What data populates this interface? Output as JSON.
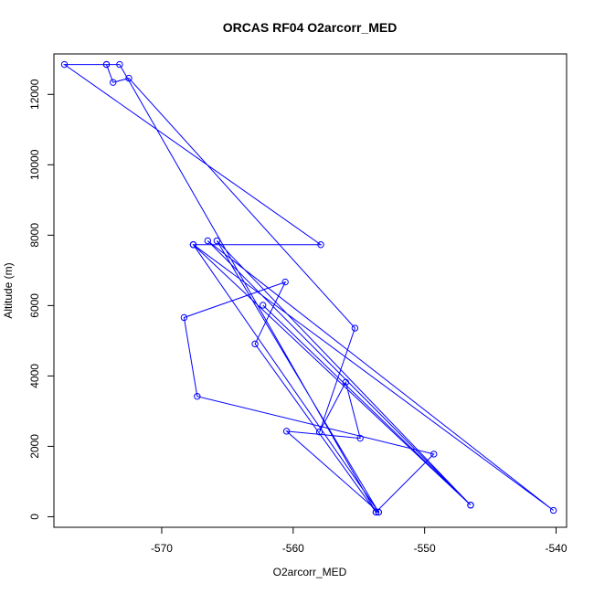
{
  "chart_data": {
    "type": "line",
    "title": "ORCAS RF04 O2arcorr_MED",
    "xlabel": "O2arcorr_MED",
    "ylabel": "Altitude (m)",
    "xlim": [
      -578.2,
      -539.2
    ],
    "ylim": [
      -300,
      13150
    ],
    "x_ticks": [
      -570,
      -560,
      -550,
      -540
    ],
    "y_ticks": [
      0,
      2000,
      4000,
      6000,
      8000,
      10000,
      12000
    ],
    "grid": false,
    "series": [
      {
        "color": "#0000ff",
        "marker": "open-circle",
        "points": [
          [
            -574.2,
            12850
          ],
          [
            -577.4,
            12850
          ],
          [
            -557.9,
            7730
          ],
          [
            -567.6,
            7730
          ],
          [
            -553.5,
            130
          ],
          [
            -553.7,
            130
          ],
          [
            -549.3,
            1780
          ],
          [
            -567.3,
            3420
          ],
          [
            -568.3,
            5660
          ],
          [
            -560.6,
            6670
          ],
          [
            -562.9,
            4910
          ],
          [
            -553.7,
            130
          ],
          [
            -573.2,
            12850
          ],
          [
            -574.2,
            12850
          ],
          [
            -573.7,
            12340
          ],
          [
            -572.5,
            12460
          ],
          [
            -555.3,
            5360
          ],
          [
            -558.0,
            2410
          ],
          [
            -556.0,
            3820
          ],
          [
            -554.9,
            2230
          ],
          [
            -560.5,
            2430
          ],
          [
            -553.5,
            130
          ],
          [
            -565.8,
            7840
          ],
          [
            -546.5,
            330
          ],
          [
            -566.5,
            7840
          ],
          [
            -540.2,
            180
          ],
          [
            -567.6,
            7730
          ],
          [
            -546.5,
            330
          ],
          [
            -562.3,
            6010
          ]
        ]
      }
    ]
  }
}
